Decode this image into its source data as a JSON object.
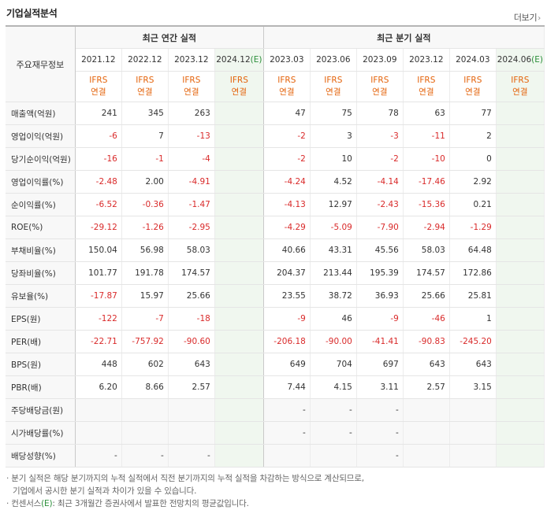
{
  "title": "기업실적분석",
  "more_label": "더보기",
  "header": {
    "row_label": "주요재무정보",
    "annual_group": "최근 연간 실적",
    "quarter_group": "최근 분기 실적",
    "annual_periods": [
      "2021.12",
      "2022.12",
      "2023.12",
      "2024.12"
    ],
    "quarter_periods": [
      "2023.03",
      "2023.06",
      "2023.09",
      "2023.12",
      "2024.03",
      "2024.06"
    ],
    "estimate_mark": "(E)",
    "ifrs": "IFRS",
    "consolidated": "연결"
  },
  "rows": [
    {
      "label": "매출액(억원)",
      "annual": [
        "241",
        "345",
        "263",
        ""
      ],
      "quarter": [
        "47",
        "75",
        "78",
        "63",
        "77",
        ""
      ]
    },
    {
      "label": "영업이익(억원)",
      "annual": [
        "-6",
        "7",
        "-13",
        ""
      ],
      "quarter": [
        "-2",
        "3",
        "-3",
        "-11",
        "2",
        ""
      ]
    },
    {
      "label": "당기순이익(억원)",
      "annual": [
        "-16",
        "-1",
        "-4",
        ""
      ],
      "quarter": [
        "-2",
        "10",
        "-2",
        "-10",
        "0",
        ""
      ]
    },
    {
      "label": "영업이익률(%)",
      "annual": [
        "-2.48",
        "2.00",
        "-4.91",
        ""
      ],
      "quarter": [
        "-4.24",
        "4.52",
        "-4.14",
        "-17.46",
        "2.92",
        ""
      ]
    },
    {
      "label": "순이익률(%)",
      "annual": [
        "-6.52",
        "-0.36",
        "-1.47",
        ""
      ],
      "quarter": [
        "-4.13",
        "12.97",
        "-2.43",
        "-15.36",
        "0.21",
        ""
      ]
    },
    {
      "label": "ROE(%)",
      "annual": [
        "-29.12",
        "-1.26",
        "-2.95",
        ""
      ],
      "quarter": [
        "-4.29",
        "-5.09",
        "-7.90",
        "-2.94",
        "-1.29",
        ""
      ]
    },
    {
      "label": "부채비율(%)",
      "annual": [
        "150.04",
        "56.98",
        "58.03",
        ""
      ],
      "quarter": [
        "40.66",
        "43.31",
        "45.56",
        "58.03",
        "64.48",
        ""
      ]
    },
    {
      "label": "당좌비율(%)",
      "annual": [
        "101.77",
        "191.78",
        "174.57",
        ""
      ],
      "quarter": [
        "204.37",
        "213.44",
        "195.39",
        "174.57",
        "172.86",
        ""
      ]
    },
    {
      "label": "유보율(%)",
      "annual": [
        "-17.87",
        "15.97",
        "25.66",
        ""
      ],
      "quarter": [
        "23.55",
        "38.72",
        "36.93",
        "25.66",
        "25.81",
        ""
      ]
    },
    {
      "label": "EPS(원)",
      "annual": [
        "-122",
        "-7",
        "-18",
        ""
      ],
      "quarter": [
        "-9",
        "46",
        "-9",
        "-46",
        "1",
        ""
      ]
    },
    {
      "label": "PER(배)",
      "annual": [
        "-22.71",
        "-757.92",
        "-90.60",
        ""
      ],
      "quarter": [
        "-206.18",
        "-90.00",
        "-41.41",
        "-90.83",
        "-245.20",
        ""
      ]
    },
    {
      "label": "BPS(원)",
      "annual": [
        "448",
        "602",
        "643",
        ""
      ],
      "quarter": [
        "649",
        "704",
        "697",
        "643",
        "643",
        ""
      ]
    },
    {
      "label": "PBR(배)",
      "annual": [
        "6.20",
        "8.66",
        "2.57",
        ""
      ],
      "quarter": [
        "7.44",
        "4.15",
        "3.11",
        "2.57",
        "3.15",
        ""
      ]
    },
    {
      "label": "주당배당금(원)",
      "annual": [
        "",
        "",
        "",
        ""
      ],
      "quarter": [
        "-",
        "-",
        "-",
        "",
        "",
        ""
      ]
    },
    {
      "label": "시가배당률(%)",
      "annual": [
        "",
        "",
        "",
        ""
      ],
      "quarter": [
        "-",
        "-",
        "-",
        "",
        "",
        ""
      ]
    },
    {
      "label": "배당성향(%)",
      "annual": [
        "-",
        "-",
        "-",
        ""
      ],
      "quarter": [
        "",
        "",
        "-",
        "",
        "",
        ""
      ]
    }
  ],
  "notes": {
    "line1": "· 분기 실적은 해당 분기까지의 누적 실적에서 직전 분기까지의 누적 실적을 차감하는 방식으로 계산되므로,",
    "line2": "기업에서 공시한 분기 실적과 차이가 있을 수 있습니다.",
    "line3_prefix": "· 컨센서스",
    "line3_mark": "(E)",
    "line3_suffix": ": 최근 3개월간 증권사에서 발표한 전망치의 평균값입니다."
  }
}
